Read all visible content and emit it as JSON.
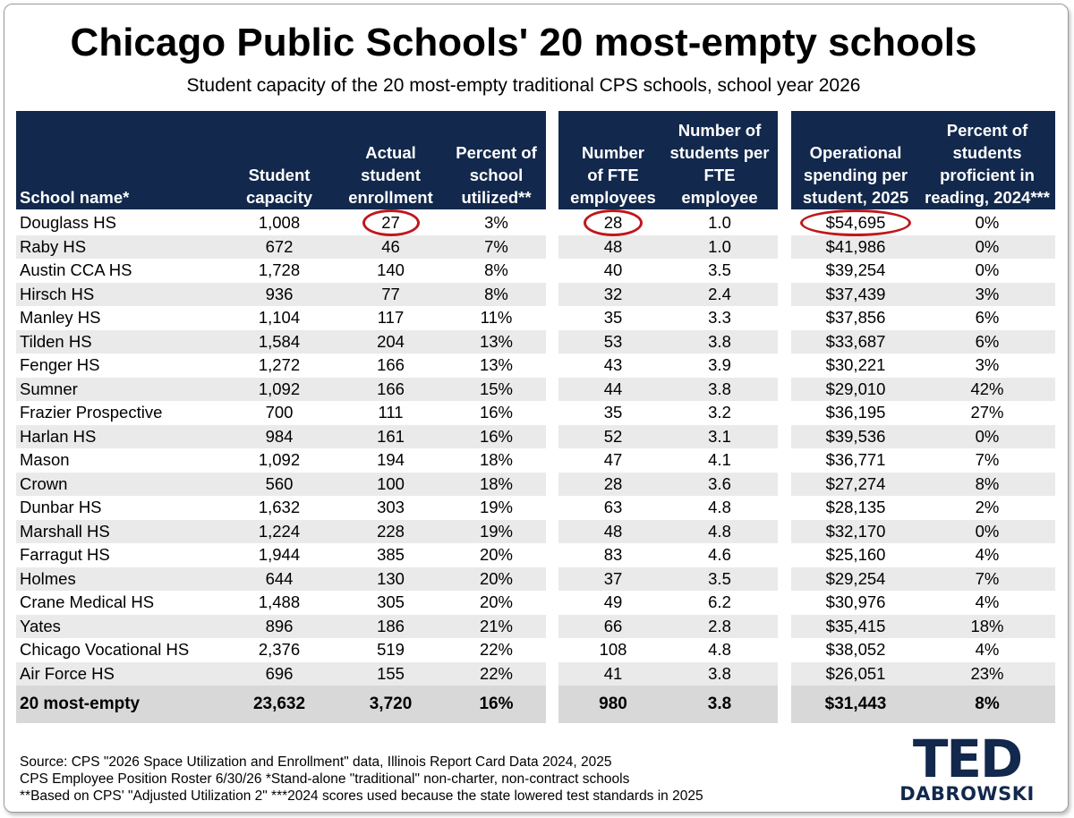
{
  "title": "Chicago Public Schools' 20 most-empty schools",
  "subtitle": "Student capacity of the 20 most-empty traditional CPS schools, school year 2026",
  "chart_data": {
    "type": "table",
    "columns": [
      "School name*",
      "Student capacity",
      "Actual student enrollment",
      "Percent of school utilized**",
      "Number of FTE employees",
      "Number of students per FTE employee",
      "Operational spending per student, 2025",
      "Percent of students proficient in reading, 2024***"
    ],
    "rows": [
      [
        "Douglass HS",
        "1,008",
        "27",
        "3%",
        "28",
        "1.0",
        "$54,695",
        "0%"
      ],
      [
        "Raby HS",
        "672",
        "46",
        "7%",
        "48",
        "1.0",
        "$41,986",
        "0%"
      ],
      [
        "Austin CCA HS",
        "1,728",
        "140",
        "8%",
        "40",
        "3.5",
        "$39,254",
        "0%"
      ],
      [
        "Hirsch HS",
        "936",
        "77",
        "8%",
        "32",
        "2.4",
        "$37,439",
        "3%"
      ],
      [
        "Manley HS",
        "1,104",
        "117",
        "11%",
        "35",
        "3.3",
        "$37,856",
        "6%"
      ],
      [
        "Tilden HS",
        "1,584",
        "204",
        "13%",
        "53",
        "3.8",
        "$33,687",
        "6%"
      ],
      [
        "Fenger HS",
        "1,272",
        "166",
        "13%",
        "43",
        "3.9",
        "$30,221",
        "3%"
      ],
      [
        "Sumner",
        "1,092",
        "166",
        "15%",
        "44",
        "3.8",
        "$29,010",
        "42%"
      ],
      [
        "Frazier Prospective",
        "700",
        "111",
        "16%",
        "35",
        "3.2",
        "$36,195",
        "27%"
      ],
      [
        "Harlan HS",
        "984",
        "161",
        "16%",
        "52",
        "3.1",
        "$39,536",
        "0%"
      ],
      [
        "Mason",
        "1,092",
        "194",
        "18%",
        "47",
        "4.1",
        "$36,771",
        "7%"
      ],
      [
        "Crown",
        "560",
        "100",
        "18%",
        "28",
        "3.6",
        "$27,274",
        "8%"
      ],
      [
        "Dunbar HS",
        "1,632",
        "303",
        "19%",
        "63",
        "4.8",
        "$28,135",
        "2%"
      ],
      [
        "Marshall HS",
        "1,224",
        "228",
        "19%",
        "48",
        "4.8",
        "$32,170",
        "0%"
      ],
      [
        "Farragut HS",
        "1,944",
        "385",
        "20%",
        "83",
        "4.6",
        "$25,160",
        "4%"
      ],
      [
        "Holmes",
        "644",
        "130",
        "20%",
        "37",
        "3.5",
        "$29,254",
        "7%"
      ],
      [
        "Crane Medical HS",
        "1,488",
        "305",
        "20%",
        "49",
        "6.2",
        "$30,976",
        "4%"
      ],
      [
        "Yates",
        "896",
        "186",
        "21%",
        "66",
        "2.8",
        "$35,415",
        "18%"
      ],
      [
        "Chicago Vocational HS",
        "2,376",
        "519",
        "22%",
        "108",
        "4.8",
        "$38,052",
        "4%"
      ],
      [
        "Air Force HS",
        "696",
        "155",
        "22%",
        "41",
        "3.8",
        "$26,051",
        "23%"
      ]
    ],
    "total": [
      "20 most-empty",
      "23,632",
      "3,720",
      "16%",
      "980",
      "3.8",
      "$31,443",
      "8%"
    ],
    "highlighted_cells": [
      {
        "row": "Douglass HS",
        "column": "Actual student enrollment",
        "value": "27"
      },
      {
        "row": "Douglass HS",
        "column": "Number of FTE employees",
        "value": "28"
      },
      {
        "row": "Douglass HS",
        "column": "Operational spending per student, 2025",
        "value": "$54,695"
      }
    ],
    "colors": {
      "header_bg": "#12284c",
      "stripe": "#eaeaea",
      "total_bg": "#d8d8d8",
      "highlight": "#c0171b"
    }
  },
  "footer": [
    "Source: CPS \"2026 Space Utilization and Enrollment\" data, Illinois Report Card Data 2024, 2025",
    "CPS Employee Position Roster 6/30/26  *Stand-alone \"traditional\" non-charter, non-contract schools",
    "**Based on CPS' \"Adjusted Utilization 2\"  ***2024 scores used because the state lowered test standards in 2025"
  ],
  "logo": {
    "line1": "TED",
    "line2": "DABROWSKI"
  }
}
